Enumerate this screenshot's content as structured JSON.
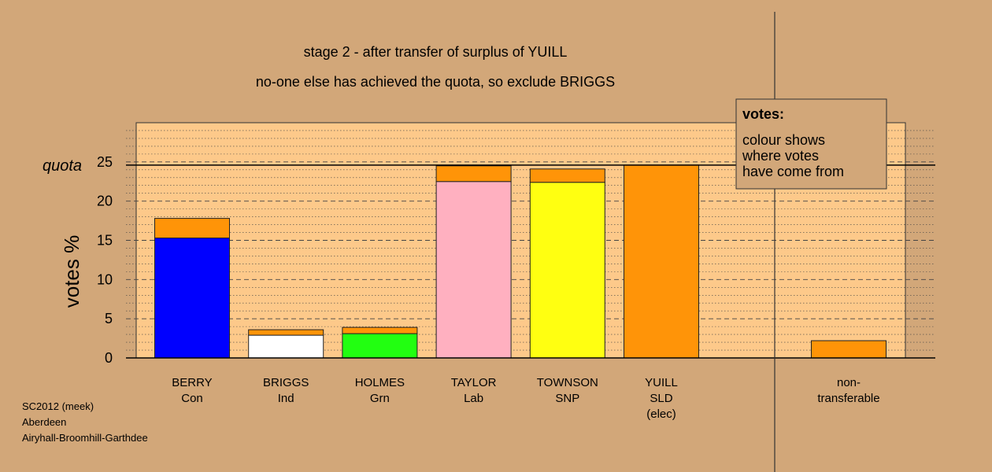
{
  "chart_data": {
    "type": "bar",
    "stacked": true,
    "title": "stage 2 - after transfer of surplus of YUILL",
    "subtitle": "no-one else has achieved the quota, so exclude BRIGGS",
    "ylabel": "votes %",
    "ylim": [
      0,
      30
    ],
    "yticks": [
      0,
      5,
      10,
      15,
      20,
      25
    ],
    "quota_label": "quota",
    "quota": 24.6,
    "categories": [
      {
        "name": "BERRY",
        "party": "Con",
        "extra": ""
      },
      {
        "name": "BRIGGS",
        "party": "Ind",
        "extra": ""
      },
      {
        "name": "HOLMES",
        "party": "Grn",
        "extra": ""
      },
      {
        "name": "TAYLOR",
        "party": "Lab",
        "extra": ""
      },
      {
        "name": "TOWNSON",
        "party": "SNP",
        "extra": ""
      },
      {
        "name": "YUILL",
        "party": "SLD",
        "extra": "(elec)"
      }
    ],
    "nontransferable": {
      "label_line1": "non-",
      "label_line2": "transferable",
      "value": 2.2,
      "color": "#ff9408"
    },
    "bars": [
      {
        "own": 15.3,
        "own_color": "#0000ff",
        "transfer": 2.5,
        "transfer_color": "#ff9408"
      },
      {
        "own": 2.9,
        "own_color": "#ffffff",
        "transfer": 0.7,
        "transfer_color": "#ff9408"
      },
      {
        "own": 3.1,
        "own_color": "#22ff11",
        "transfer": 0.8,
        "transfer_color": "#ff9408"
      },
      {
        "own": 22.5,
        "own_color": "#ffb0c0",
        "transfer": 2.0,
        "transfer_color": "#ff9408"
      },
      {
        "own": 22.4,
        "own_color": "#ffff11",
        "transfer": 1.7,
        "transfer_color": "#ff9408"
      },
      {
        "own": 24.6,
        "own_color": "#ff9408",
        "transfer": 0,
        "transfer_color": "#ff9408"
      }
    ],
    "legend": {
      "title": "votes:",
      "lines": [
        "colour shows",
        "where votes",
        "have come from"
      ]
    },
    "grid": true,
    "colors": {
      "background": "#d2a779",
      "plot_background": "#fdc98a",
      "legend_background": "#d2a779"
    }
  },
  "footer": [
    "SC2012 (meek)",
    "Aberdeen",
    "Airyhall-Broomhill-Garthdee"
  ]
}
